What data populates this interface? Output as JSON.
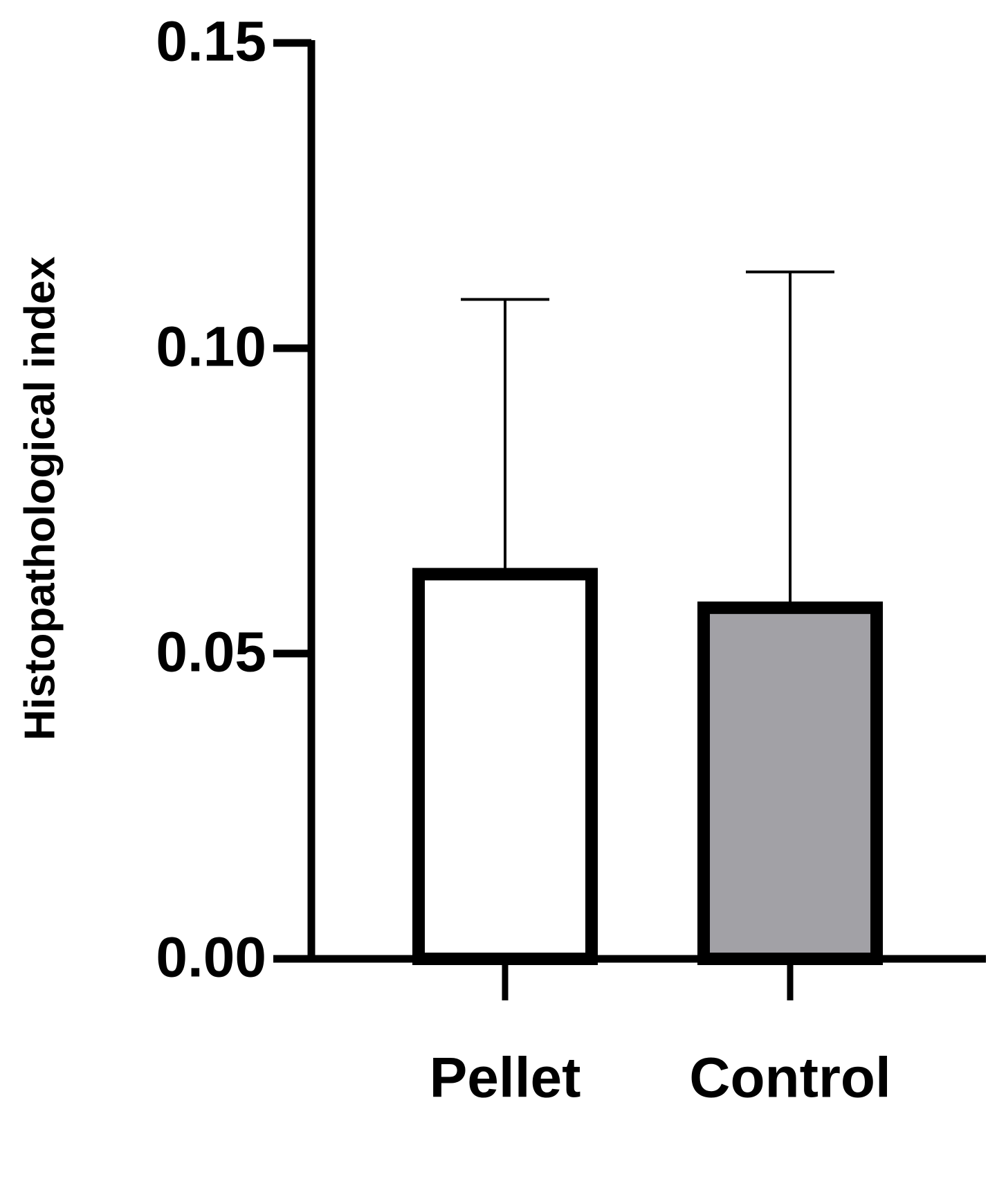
{
  "chart_data": {
    "type": "bar",
    "y_label": "Histopathological index",
    "categories": [
      "Pellet",
      "Control"
    ],
    "values": [
      0.063,
      0.0575
    ],
    "errors": [
      0.045,
      0.055
    ],
    "colors": [
      "#ffffff",
      "#a2a1a6"
    ],
    "ylim": [
      0,
      0.15
    ],
    "yticks": [
      {
        "value": 0,
        "label": "0.00"
      },
      0.05,
      {
        "value": 0.1,
        "label": "0.10"
      },
      0.15
    ]
  }
}
